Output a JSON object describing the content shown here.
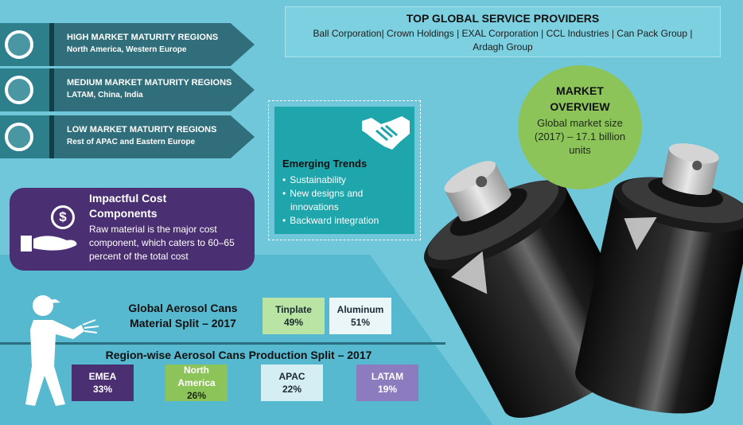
{
  "maturity": [
    {
      "title": "HIGH MARKET MATURITY REGIONS",
      "regions": "North America, Western Europe"
    },
    {
      "title": "MEDIUM MARKET MATURITY REGIONS",
      "regions": "LATAM, China, India"
    },
    {
      "title": "LOW MARKET MATURITY REGIONS",
      "regions": "Rest of APAC and Eastern Europe"
    }
  ],
  "providers": {
    "title": "TOP GLOBAL SERVICE PROVIDERS",
    "list": "Ball Corporation| Crown Holdings | EXAL Corporation | CCL Industries | Can Pack Group | Ardagh Group"
  },
  "trends": {
    "title": "Emerging Trends",
    "items": [
      "Sustainability",
      "New designs and innovations",
      "Backward integration"
    ]
  },
  "cost": {
    "title": "Impactful Cost Components",
    "text": "Raw material is the major cost component, which caters to 60–65 percent of the total cost"
  },
  "overview": {
    "title": "MARKET OVERVIEW",
    "text": "Global market size (2017) – 17.1 billion units"
  },
  "material_split": {
    "title": "Global Aerosol Cans Material Split – 2017",
    "tiles": [
      {
        "name": "Tinplate",
        "value": "49%",
        "color": "#b9e4a4"
      },
      {
        "name": "Aluminum",
        "value": "51%",
        "color": "#eaf6f8"
      }
    ]
  },
  "region_split": {
    "title": "Region-wise Aerosol Cans Production Split – 2017",
    "tiles": [
      {
        "name": "EMEA",
        "value": "33%",
        "color": "#4b2f73"
      },
      {
        "name": "North America",
        "value": "26%",
        "color": "#8cc45a"
      },
      {
        "name": "APAC",
        "value": "22%",
        "color": "#d4eef3"
      },
      {
        "name": "LATAM",
        "value": "19%",
        "color": "#8d7bbf"
      }
    ]
  },
  "icons": {
    "rings": "ring-icon",
    "handshake": "handshake-icon",
    "cost": "dollar-hand-icon",
    "worker": "worker-spraying-icon",
    "cans": "aerosol-cans-image"
  }
}
